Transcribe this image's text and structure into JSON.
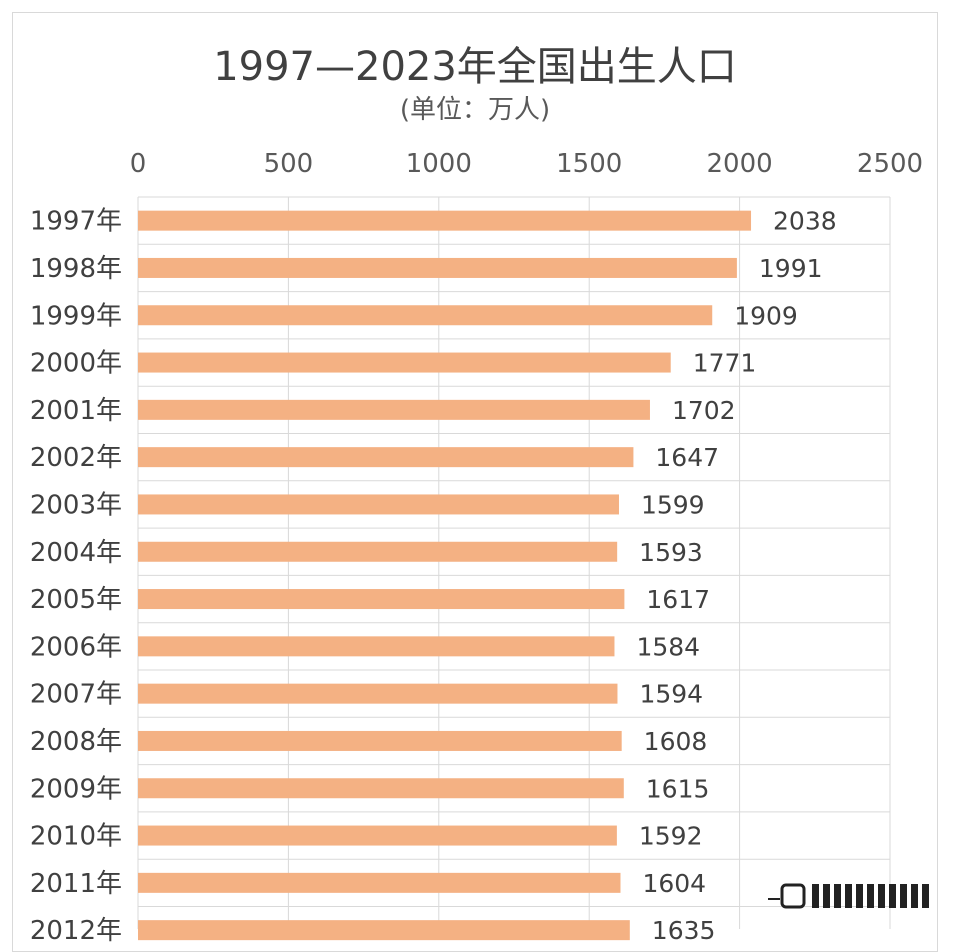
{
  "chart_data": {
    "type": "bar",
    "orientation": "horizontal",
    "title": "1997—2023年全国出生人口",
    "subtitle": "(单位：万人)",
    "xlim": [
      0,
      2500
    ],
    "xticks": [
      "0",
      "500",
      "1000",
      "1500",
      "2000",
      "2500"
    ],
    "categories": [
      "1997年",
      "1998年",
      "1999年",
      "2000年",
      "2001年",
      "2002年",
      "2003年",
      "2004年",
      "2005年",
      "2006年",
      "2007年",
      "2008年",
      "2009年",
      "2010年",
      "2011年",
      "2012年"
    ],
    "values": [
      2038,
      1991,
      1909,
      1771,
      1702,
      1647,
      1599,
      1593,
      1617,
      1584,
      1594,
      1608,
      1615,
      1592,
      1604,
      1635
    ],
    "value_labels": [
      "2038",
      "1991",
      "1909",
      "1771",
      "1702",
      "1647",
      "1599",
      "1593",
      "1617",
      "1584",
      "1594",
      "1608",
      "1615",
      "1592",
      "1604",
      "1635"
    ],
    "axis_position": "top",
    "grid": true,
    "bar_color": "#f4b183",
    "grid_color": "#d9d9d9"
  }
}
